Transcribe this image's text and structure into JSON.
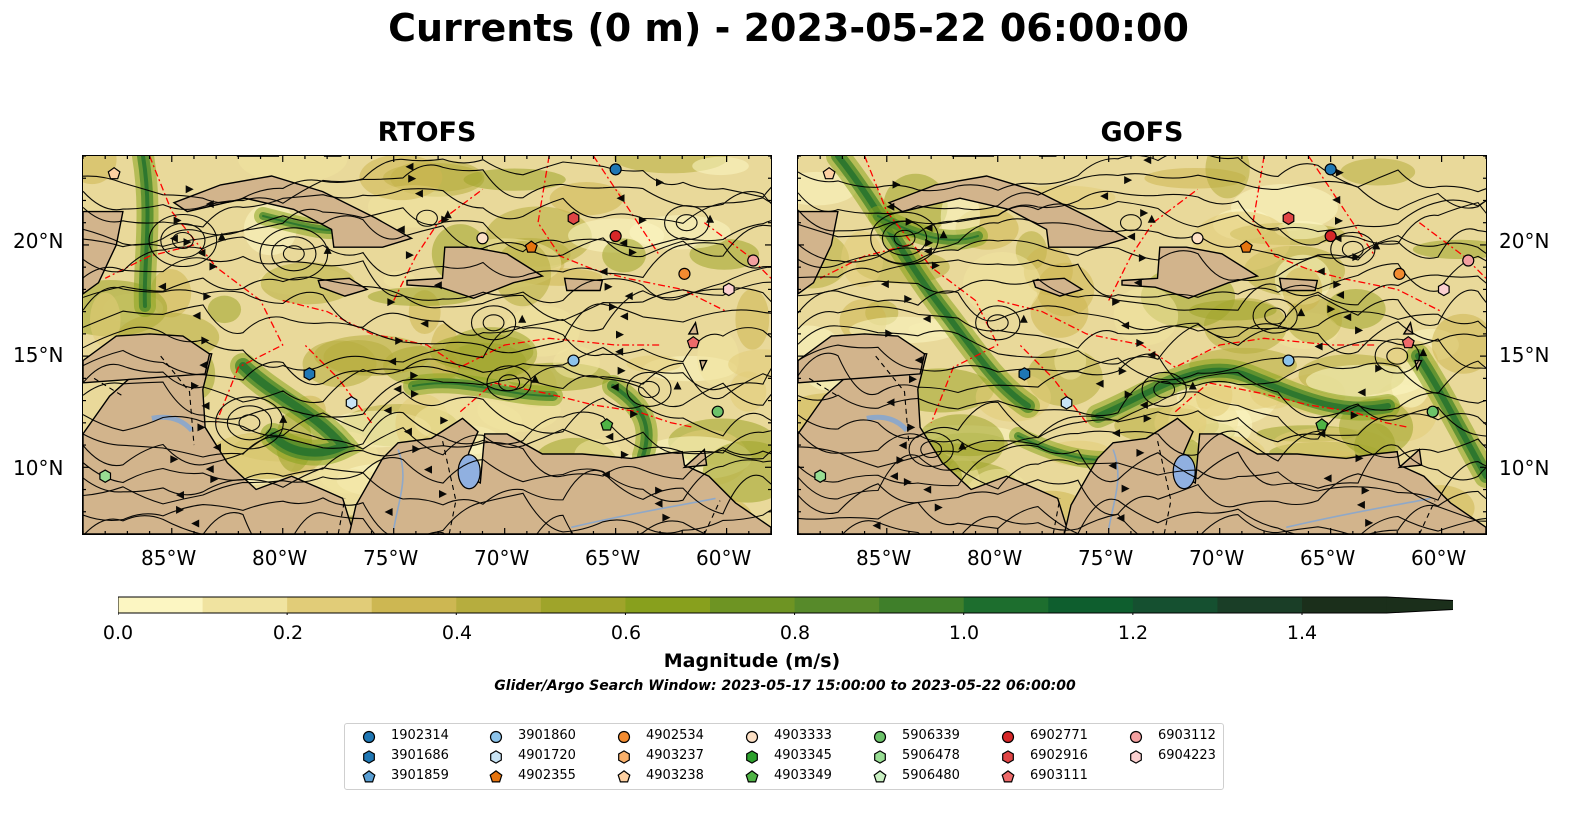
{
  "title": "Currents (0 m) - 2023-05-22 06:00:00",
  "panels": [
    {
      "name": "RTOFS"
    },
    {
      "name": "GOFS"
    }
  ],
  "map": {
    "lon_range": [
      -89,
      -58
    ],
    "lat_range": [
      7,
      24
    ],
    "lon_ticks": [
      "85°W",
      "80°W",
      "75°W",
      "70°W",
      "65°W",
      "60°W"
    ],
    "lat_ticks": [
      "20°N",
      "15°N",
      "10°N"
    ],
    "colors": {
      "land": "#d2b48c",
      "boundary": "#000000",
      "eez": "#ff0000",
      "river": "#8fa8c8",
      "lake": "#90b0e0"
    }
  },
  "colorbar": {
    "label": "Magnitude (m/s)",
    "ticks": [
      "0.0",
      "0.2",
      "0.4",
      "0.6",
      "0.8",
      "1.0",
      "1.2",
      "1.4"
    ],
    "range": [
      0,
      1.5
    ],
    "extend": "max",
    "colors": [
      "#fcf6c2",
      "#f0e3a0",
      "#e1cc78",
      "#cdb752",
      "#b6ad3e",
      "#9fa42a",
      "#88a01d",
      "#6e9423",
      "#578a2a",
      "#3f7f2a",
      "#1d6e2e",
      "#0e5e2e",
      "#155030",
      "#1a3e27",
      "#1b2f1b"
    ]
  },
  "search_window": "Glider/Argo Search Window: 2023-05-17 15:00:00 to 2023-05-22 06:00:00",
  "legend": {
    "items": [
      {
        "id": "1902314",
        "color": "#1f77b4",
        "marker": "circle"
      },
      {
        "id": "3901686",
        "color": "#1f77b4",
        "marker": "hexagon"
      },
      {
        "id": "3901859",
        "color": "#5a9fd4",
        "marker": "pentagon"
      },
      {
        "id": "3901860",
        "color": "#8cc3ea",
        "marker": "circle"
      },
      {
        "id": "4901720",
        "color": "#c9e4f5",
        "marker": "hexagon"
      },
      {
        "id": "4902355",
        "color": "#e6740f",
        "marker": "pentagon"
      },
      {
        "id": "4902534",
        "color": "#f28b30",
        "marker": "circle"
      },
      {
        "id": "4903237",
        "color": "#f9b06b",
        "marker": "hexagon"
      },
      {
        "id": "4903238",
        "color": "#fdd0a2",
        "marker": "pentagon"
      },
      {
        "id": "4903333",
        "color": "#fde0c5",
        "marker": "circle"
      },
      {
        "id": "4903345",
        "color": "#2ca02c",
        "marker": "hexagon"
      },
      {
        "id": "4903349",
        "color": "#4fb345",
        "marker": "pentagon"
      },
      {
        "id": "5906339",
        "color": "#6cc26a",
        "marker": "circle"
      },
      {
        "id": "5906478",
        "color": "#98dd93",
        "marker": "hexagon"
      },
      {
        "id": "5906480",
        "color": "#c9f0c2",
        "marker": "pentagon"
      },
      {
        "id": "6902771",
        "color": "#d62728",
        "marker": "circle"
      },
      {
        "id": "6902916",
        "color": "#e04545",
        "marker": "hexagon"
      },
      {
        "id": "6903111",
        "color": "#ee6a6a",
        "marker": "pentagon"
      },
      {
        "id": "6903112",
        "color": "#f3a0a0",
        "marker": "circle"
      },
      {
        "id": "6904223",
        "color": "#fbd0d0",
        "marker": "hexagon"
      }
    ]
  },
  "floats": [
    {
      "id": "1902314",
      "lon": -65.0,
      "lat": 23.4
    },
    {
      "id": "3901686",
      "lon": -78.8,
      "lat": 14.2
    },
    {
      "id": "3901860",
      "lon": -66.9,
      "lat": 14.8
    },
    {
      "id": "4901720",
      "lon": -76.9,
      "lat": 12.9
    },
    {
      "id": "4902355",
      "lon": -68.8,
      "lat": 19.9
    },
    {
      "id": "4902534",
      "lon": -61.9,
      "lat": 18.7
    },
    {
      "id": "4903238",
      "lon": -87.6,
      "lat": 23.2
    },
    {
      "id": "4903333",
      "lon": -71.0,
      "lat": 20.3
    },
    {
      "id": "4903349",
      "lon": -65.4,
      "lat": 11.9
    },
    {
      "id": "5906339",
      "lon": -60.4,
      "lat": 12.5
    },
    {
      "id": "5906478",
      "lon": -88.0,
      "lat": 9.6
    },
    {
      "id": "6902771",
      "lon": -65.0,
      "lat": 20.4
    },
    {
      "id": "6903111",
      "lon": -61.5,
      "lat": 15.6
    },
    {
      "id": "6903112",
      "lon": -58.8,
      "lat": 19.3
    },
    {
      "id": "6904223",
      "lon": -59.9,
      "lat": 18.0
    },
    {
      "id": "6902916",
      "lon": -66.9,
      "lat": 21.2
    }
  ]
}
